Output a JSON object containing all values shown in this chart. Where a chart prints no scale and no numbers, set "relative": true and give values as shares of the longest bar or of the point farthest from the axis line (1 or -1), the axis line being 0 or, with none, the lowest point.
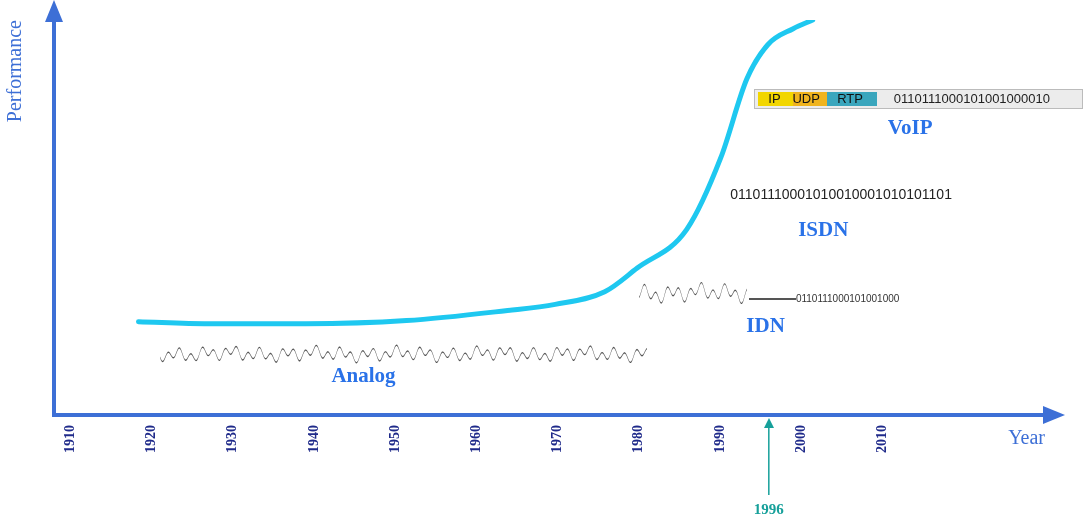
{
  "chart_data": {
    "type": "line",
    "relative": true,
    "xlabel": "Year",
    "ylabel": "Performance",
    "x": [
      1918.4,
      1927,
      1939,
      1951.4,
      1963.6,
      1969.7,
      1975.8,
      1979.8,
      1985.9,
      1990.1,
      1993.3,
      1995.9,
      1999,
      2001.4
    ],
    "series": [
      {
        "color": "#1ec8f0",
        "values": [
          0.236,
          0.231,
          0.231,
          0.239,
          0.264,
          0.28,
          0.312,
          0.372,
          0.47,
          0.652,
          0.851,
          0.938,
          0.978,
          1
        ]
      }
    ],
    "xlim": [
      1908,
      2030
    ],
    "xticks": [
      1910,
      1920,
      1930,
      1940,
      1950,
      1960,
      1970,
      1980,
      1990,
      2000,
      2010
    ],
    "grid": false,
    "legend": false,
    "marker": "none",
    "line_style": "solid",
    "ref_lines": [
      {
        "axis": "x",
        "value": 1996,
        "label": "1996",
        "color": "#16a09a"
      }
    ],
    "annotations": [
      "Analog",
      "IDN",
      "ISDN",
      "VoIP",
      "0110111000101001000",
      "01101110001010010001010101101",
      "IP",
      "UDP",
      "RTP",
      "0110111000101001000010"
    ]
  }
}
